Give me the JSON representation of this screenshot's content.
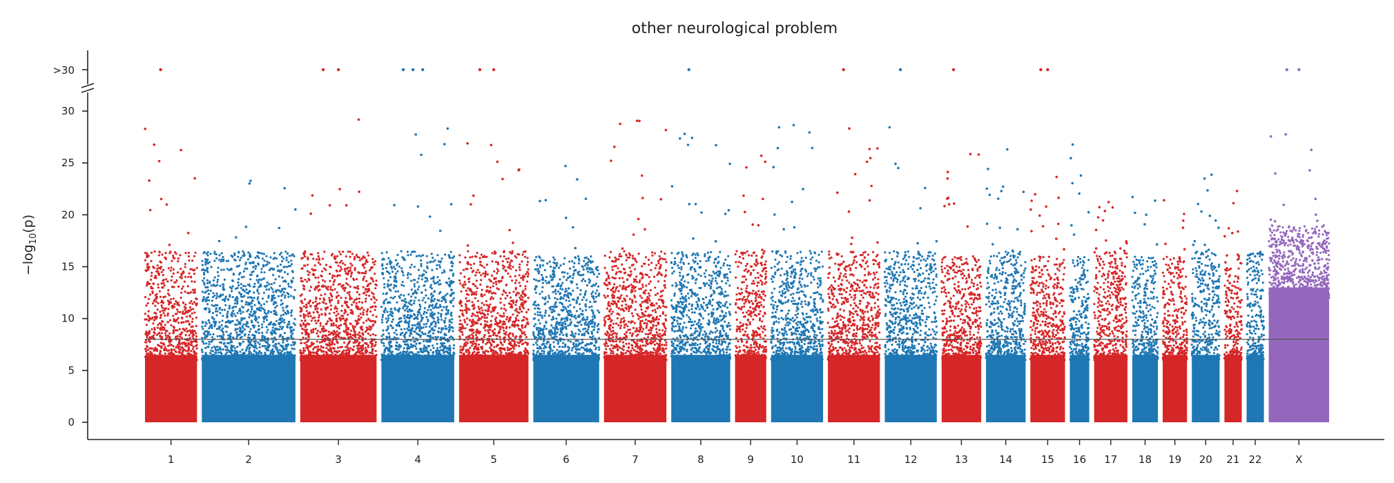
{
  "chart_data": {
    "type": "scatter",
    "title": "other neurological problem",
    "ylabel": "−log10(p)",
    "ylabel_main": "−log",
    "ylabel_sub": "10",
    "ylabel_tail": "(p)",
    "xlabel": "",
    "ylim": [
      0,
      30
    ],
    "yticks": [
      0,
      5,
      10,
      15,
      20,
      25,
      30
    ],
    "overflow_label": ">30",
    "significance_threshold": 8,
    "chromosomes": [
      {
        "label": "1",
        "color": "#d62728",
        "max_bulk": 16.5,
        "max_y": 29.5,
        "overflow": 1
      },
      {
        "label": "2",
        "color": "#1f77b4",
        "max_bulk": 16.5,
        "max_y": 26.5,
        "overflow": 0
      },
      {
        "label": "3",
        "color": "#d62728",
        "max_bulk": 16.5,
        "max_y": 29.8,
        "overflow": 2
      },
      {
        "label": "4",
        "color": "#1f77b4",
        "max_bulk": 16.5,
        "max_y": 29.0,
        "overflow": 3
      },
      {
        "label": "5",
        "color": "#d62728",
        "max_bulk": 16.5,
        "max_y": 27.8,
        "overflow": 2
      },
      {
        "label": "6",
        "color": "#1f77b4",
        "max_bulk": 16.0,
        "max_y": 25.0,
        "overflow": 0
      },
      {
        "label": "7",
        "color": "#d62728",
        "max_bulk": 16.5,
        "max_y": 29.2,
        "overflow": 0
      },
      {
        "label": "8",
        "color": "#1f77b4",
        "max_bulk": 16.5,
        "max_y": 29.3,
        "overflow": 1
      },
      {
        "label": "9",
        "color": "#d62728",
        "max_bulk": 16.5,
        "max_y": 25.8,
        "overflow": 0
      },
      {
        "label": "10",
        "color": "#1f77b4",
        "max_bulk": 16.5,
        "max_y": 29.7,
        "overflow": 0
      },
      {
        "label": "11",
        "color": "#d62728",
        "max_bulk": 16.5,
        "max_y": 29.0,
        "overflow": 1
      },
      {
        "label": "12",
        "color": "#1f77b4",
        "max_bulk": 16.5,
        "max_y": 29.7,
        "overflow": 1
      },
      {
        "label": "13",
        "color": "#d62728",
        "max_bulk": 16.0,
        "max_y": 27.6,
        "overflow": 1
      },
      {
        "label": "14",
        "color": "#1f77b4",
        "max_bulk": 16.5,
        "max_y": 26.4,
        "overflow": 0
      },
      {
        "label": "15",
        "color": "#d62728",
        "max_bulk": 16.0,
        "max_y": 25.7,
        "overflow": 2
      },
      {
        "label": "16",
        "color": "#1f77b4",
        "max_bulk": 16.0,
        "max_y": 27.2,
        "overflow": 0
      },
      {
        "label": "17",
        "color": "#d62728",
        "max_bulk": 16.5,
        "max_y": 21.6,
        "overflow": 0
      },
      {
        "label": "18",
        "color": "#1f77b4",
        "max_bulk": 16.0,
        "max_y": 23.6,
        "overflow": 0
      },
      {
        "label": "19",
        "color": "#d62728",
        "max_bulk": 16.0,
        "max_y": 24.3,
        "overflow": 0
      },
      {
        "label": "20",
        "color": "#1f77b4",
        "max_bulk": 16.5,
        "max_y": 24.0,
        "overflow": 0
      },
      {
        "label": "21",
        "color": "#d62728",
        "max_bulk": 16.0,
        "max_y": 22.4,
        "overflow": 0
      },
      {
        "label": "22",
        "color": "#1f77b4",
        "max_bulk": 16.0,
        "max_y": 16.5,
        "overflow": 0
      },
      {
        "label": "X",
        "color": "#9467bd",
        "max_bulk": 19.0,
        "max_y": 28.3,
        "overflow": 2
      }
    ],
    "grid": false,
    "legend": "none"
  }
}
